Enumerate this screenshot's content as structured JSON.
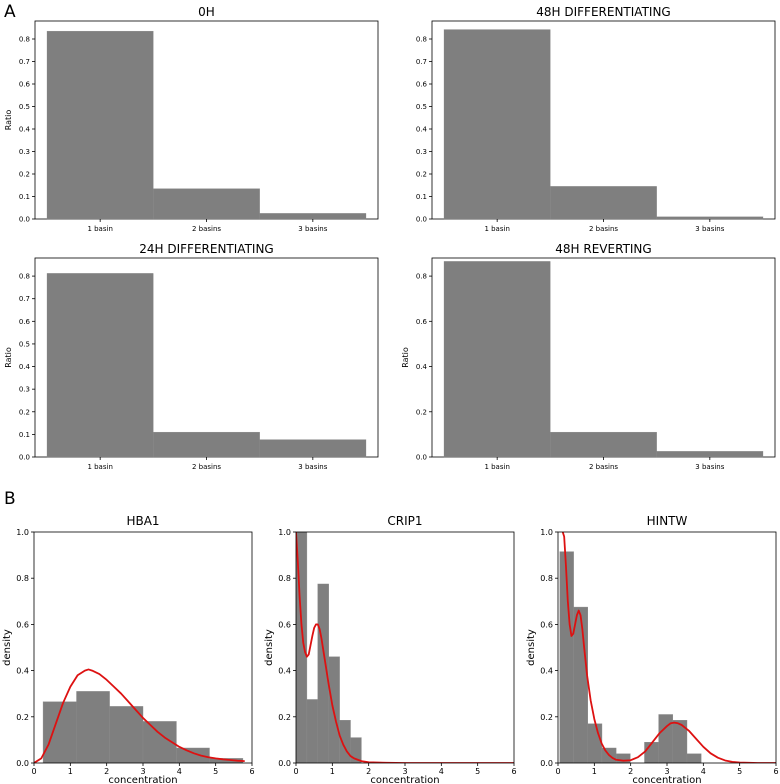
{
  "panel_a_label": "A",
  "panel_b_label": "B",
  "chart_data": [
    {
      "type": "bar",
      "panel": "A",
      "title": "0H",
      "categories": [
        "1 basin",
        "2 basins",
        "3 basins"
      ],
      "values": [
        0.835,
        0.135,
        0.025
      ],
      "ylabel": "Ratio",
      "ylim": [
        0,
        0.88
      ],
      "yticks": [
        0.0,
        0.1,
        0.2,
        0.3,
        0.4,
        0.5,
        0.6,
        0.7,
        0.8
      ],
      "ytick_labels": [
        "0.0",
        "0.1",
        "0.2",
        "0.3",
        "0.4",
        "0.5",
        "0.6",
        "0.7",
        "0.8"
      ],
      "bar_color": "#7f7f7f"
    },
    {
      "type": "bar",
      "panel": "A",
      "title": "48H DIFFERENTIATING",
      "categories": [
        "1 basin",
        "2 basins",
        "3 basins"
      ],
      "values": [
        0.842,
        0.145,
        0.01
      ],
      "ylabel": "",
      "ylim": [
        0,
        0.88
      ],
      "yticks": [
        0.0,
        0.1,
        0.2,
        0.3,
        0.4,
        0.5,
        0.6,
        0.7,
        0.8
      ],
      "ytick_labels": [
        "0.0",
        "0.1",
        "0.2",
        "0.3",
        "0.4",
        "0.5",
        "0.6",
        "0.7",
        "0.8"
      ],
      "bar_color": "#7f7f7f"
    },
    {
      "type": "bar",
      "panel": "A",
      "title": "24H DIFFERENTIATING",
      "categories": [
        "1 basin",
        "2 basins",
        "3 basins"
      ],
      "values": [
        0.812,
        0.11,
        0.077
      ],
      "ylabel": "Ratio",
      "ylim": [
        0,
        0.88
      ],
      "yticks": [
        0.0,
        0.1,
        0.2,
        0.3,
        0.4,
        0.5,
        0.6,
        0.7,
        0.8
      ],
      "ytick_labels": [
        "0.0",
        "0.1",
        "0.2",
        "0.3",
        "0.4",
        "0.5",
        "0.6",
        "0.7",
        "0.8"
      ],
      "bar_color": "#7f7f7f"
    },
    {
      "type": "bar",
      "panel": "A",
      "title": "48H REVERTING",
      "categories": [
        "1 basin",
        "2 basins",
        "3 basins"
      ],
      "values": [
        0.865,
        0.11,
        0.025
      ],
      "ylabel": "Ratio",
      "ylim": [
        0,
        0.88
      ],
      "yticks": [
        0.0,
        0.2,
        0.4,
        0.6,
        0.8
      ],
      "ytick_labels": [
        "0.0",
        "0.2",
        "0.4",
        "0.6",
        "0.8"
      ],
      "bar_color": "#7f7f7f"
    },
    {
      "type": "histogram+line",
      "panel": "B",
      "title": "HBA1",
      "xlabel": "concentration",
      "ylabel": "density",
      "xlim": [
        0,
        6
      ],
      "ylim": [
        0,
        1.0
      ],
      "xticks": [
        0,
        1,
        2,
        3,
        4,
        5,
        6
      ],
      "xtick_labels": [
        "0",
        "1",
        "2",
        "3",
        "4",
        "5",
        "6"
      ],
      "yticks": [
        0.0,
        0.2,
        0.4,
        0.6,
        0.8,
        1.0
      ],
      "ytick_labels": [
        "0.0",
        "0.2",
        "0.4",
        "0.6",
        "0.8",
        "1.0"
      ],
      "bin_edges": [
        0.25,
        1.17,
        2.08,
        3.0,
        3.92,
        4.83,
        5.75
      ],
      "densities": [
        0.265,
        0.31,
        0.245,
        0.18,
        0.065,
        0.02
      ],
      "hist_color": "#7f7f7f",
      "curve_color": "#dd1111",
      "curve": {
        "x": [
          0,
          0.2,
          0.4,
          0.6,
          0.8,
          1.0,
          1.2,
          1.4,
          1.5,
          1.6,
          1.8,
          2.0,
          2.2,
          2.4,
          2.6,
          2.8,
          3.0,
          3.2,
          3.4,
          3.6,
          3.8,
          4.0,
          4.2,
          4.4,
          4.6,
          4.8,
          5.0,
          5.2,
          5.4,
          5.6,
          5.8
        ],
        "y": [
          0.0,
          0.02,
          0.08,
          0.17,
          0.26,
          0.33,
          0.38,
          0.4,
          0.405,
          0.4,
          0.385,
          0.36,
          0.33,
          0.3,
          0.265,
          0.23,
          0.195,
          0.165,
          0.135,
          0.11,
          0.09,
          0.07,
          0.055,
          0.042,
          0.032,
          0.025,
          0.02,
          0.016,
          0.013,
          0.01,
          0.008
        ]
      }
    },
    {
      "type": "histogram+line",
      "panel": "B",
      "title": "CRIP1",
      "xlabel": "concentration",
      "ylabel": "density",
      "xlim": [
        0,
        6
      ],
      "ylim": [
        0,
        1.0
      ],
      "xticks": [
        0,
        1,
        2,
        3,
        4,
        5,
        6
      ],
      "xtick_labels": [
        "0",
        "1",
        "2",
        "3",
        "4",
        "5",
        "6"
      ],
      "yticks": [
        0.0,
        0.2,
        0.4,
        0.6,
        0.8,
        1.0
      ],
      "ytick_labels": [
        "0.0",
        "0.2",
        "0.4",
        "0.6",
        "0.8",
        "1.0"
      ],
      "bin_edges": [
        0.0,
        0.3,
        0.6,
        0.9,
        1.2,
        1.5,
        1.8
      ],
      "densities": [
        1.0,
        0.275,
        0.775,
        0.46,
        0.185,
        0.11
      ],
      "hist_color": "#7f7f7f",
      "curve_color": "#dd1111",
      "curve": {
        "x": [
          0.0,
          0.05,
          0.1,
          0.15,
          0.2,
          0.25,
          0.3,
          0.35,
          0.4,
          0.45,
          0.5,
          0.55,
          0.6,
          0.65,
          0.7,
          0.75,
          0.8,
          0.9,
          1.0,
          1.1,
          1.2,
          1.3,
          1.4,
          1.5,
          1.6,
          1.8,
          2.0,
          2.5,
          3.0,
          4.0,
          5.0,
          6.0
        ],
        "y": [
          1.0,
          0.87,
          0.72,
          0.6,
          0.52,
          0.48,
          0.46,
          0.47,
          0.51,
          0.55,
          0.585,
          0.6,
          0.6,
          0.58,
          0.54,
          0.49,
          0.44,
          0.34,
          0.25,
          0.18,
          0.12,
          0.08,
          0.05,
          0.03,
          0.02,
          0.008,
          0.003,
          0.001,
          0.0,
          0.0,
          0.0,
          0.0
        ]
      }
    },
    {
      "type": "histogram+line",
      "panel": "B",
      "title": "HINTW",
      "xlabel": "concentration",
      "ylabel": "density",
      "xlim": [
        0,
        6
      ],
      "ylim": [
        0,
        1.0
      ],
      "xticks": [
        0,
        1,
        2,
        3,
        4,
        5,
        6
      ],
      "xtick_labels": [
        "0",
        "1",
        "2",
        "3",
        "4",
        "5",
        "6"
      ],
      "yticks": [
        0.0,
        0.2,
        0.4,
        0.6,
        0.8,
        1.0
      ],
      "ytick_labels": [
        "0.0",
        "0.2",
        "0.4",
        "0.6",
        "0.8",
        "1.0"
      ],
      "bin_edges": [
        0.05,
        0.43,
        0.82,
        1.21,
        1.6,
        1.99,
        2.38,
        2.77,
        3.16,
        3.55,
        3.94,
        4.33
      ],
      "densities": [
        0.915,
        0.675,
        0.17,
        0.065,
        0.04,
        0.0,
        0.09,
        0.21,
        0.185,
        0.04,
        0.0
      ],
      "hist_color": "#7f7f7f",
      "curve_color": "#dd1111",
      "curve": {
        "x": [
          0.13,
          0.17,
          0.22,
          0.27,
          0.32,
          0.37,
          0.42,
          0.47,
          0.52,
          0.57,
          0.62,
          0.67,
          0.72,
          0.8,
          0.9,
          1.0,
          1.1,
          1.2,
          1.3,
          1.4,
          1.5,
          1.6,
          1.8,
          2.0,
          2.2,
          2.4,
          2.6,
          2.8,
          3.0,
          3.1,
          3.2,
          3.3,
          3.4,
          3.6,
          3.8,
          4.0,
          4.2,
          4.4,
          4.6,
          4.8,
          5.0,
          5.5,
          6.0
        ],
        "y": [
          1.0,
          0.98,
          0.85,
          0.7,
          0.6,
          0.55,
          0.56,
          0.6,
          0.64,
          0.66,
          0.64,
          0.58,
          0.5,
          0.38,
          0.27,
          0.19,
          0.13,
          0.085,
          0.055,
          0.035,
          0.022,
          0.014,
          0.01,
          0.012,
          0.025,
          0.05,
          0.09,
          0.13,
          0.16,
          0.172,
          0.175,
          0.172,
          0.165,
          0.14,
          0.105,
          0.07,
          0.042,
          0.023,
          0.011,
          0.005,
          0.002,
          0.0,
          0.0
        ]
      }
    }
  ]
}
